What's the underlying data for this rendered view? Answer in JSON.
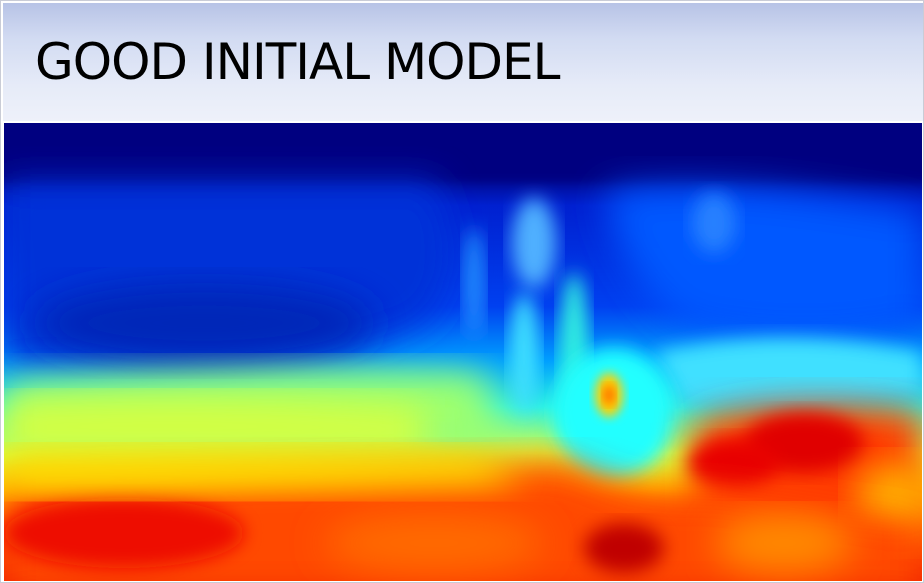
{
  "slide": {
    "title": "GOOD INITIAL MODEL"
  },
  "colors": {
    "header_gradient_top": "#b7c3e6",
    "header_gradient_bottom": "#eef1fa",
    "colormap": [
      "#00007f",
      "#0020d0",
      "#0060ff",
      "#00c8ff",
      "#40ffd0",
      "#c8ff40",
      "#ffd000",
      "#ff6000",
      "#e00000",
      "#a00000"
    ]
  },
  "image": {
    "content": "velocity model heatmap",
    "colormap_name": "jet"
  }
}
